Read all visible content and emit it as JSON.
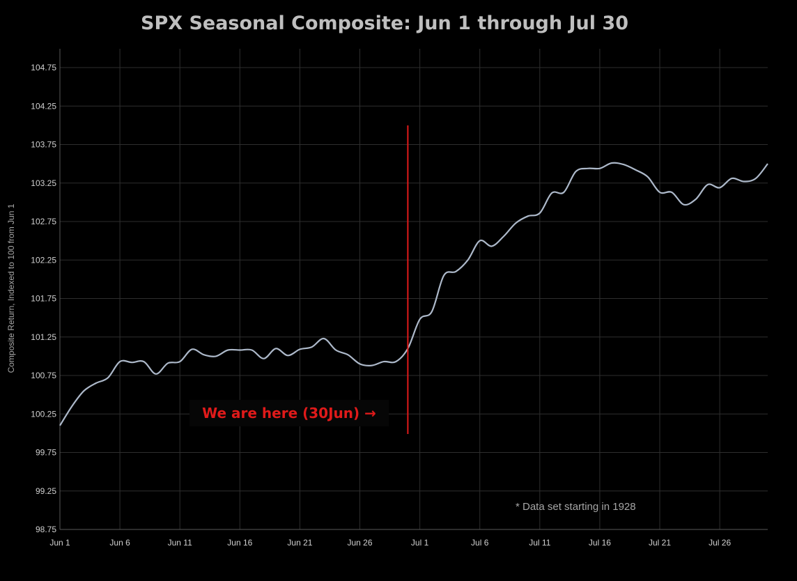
{
  "chart_data": {
    "type": "line",
    "title": "SPX Seasonal Composite: Jun 1 through Jul 30",
    "xlabel": "",
    "ylabel": "Composite Return, Indexed to 100 from Jun 1",
    "ylim": [
      98.75,
      104.75
    ],
    "yticks": [
      98.75,
      99.25,
      99.75,
      100.25,
      100.75,
      101.25,
      101.75,
      102.25,
      102.75,
      103.25,
      103.75,
      104.25,
      104.75
    ],
    "ytick_labels": [
      "98.75",
      "99.25",
      "99.75",
      "100.25",
      "100.75",
      "101.25",
      "101.75",
      "102.25",
      "102.75",
      "103.25",
      "103.75",
      "104.25",
      "104.75"
    ],
    "xtick_labels": [
      "Jun 1",
      "Jun 6",
      "Jun 11",
      "Jun 16",
      "Jun 21",
      "Jun 26",
      "Jul 1",
      "Jul 6",
      "Jul 11",
      "Jul 16",
      "Jul 21",
      "Jul 26"
    ],
    "grid": true,
    "colors": {
      "series": "#adb9ca",
      "marker": "#e01a1a",
      "background": "#000000"
    },
    "series": [
      {
        "x": [
          "Jun 1",
          "Jun 2",
          "Jun 3",
          "Jun 4",
          "Jun 5",
          "Jun 6",
          "Jun 7",
          "Jun 8",
          "Jun 9",
          "Jun 10",
          "Jun 11",
          "Jun 12",
          "Jun 13",
          "Jun 14",
          "Jun 15",
          "Jun 16",
          "Jun 17",
          "Jun 18",
          "Jun 19",
          "Jun 20",
          "Jun 21",
          "Jun 22",
          "Jun 23",
          "Jun 24",
          "Jun 25",
          "Jun 26",
          "Jun 27",
          "Jun 28",
          "Jun 29",
          "Jun 30",
          "Jul 1",
          "Jul 2",
          "Jul 3",
          "Jul 4",
          "Jul 5",
          "Jul 6",
          "Jul 7",
          "Jul 8",
          "Jul 9",
          "Jul 10",
          "Jul 11",
          "Jul 12",
          "Jul 13",
          "Jul 14",
          "Jul 15",
          "Jul 16",
          "Jul 17",
          "Jul 18",
          "Jul 19",
          "Jul 20",
          "Jul 21",
          "Jul 22",
          "Jul 23",
          "Jul 24",
          "Jul 25",
          "Jul 26",
          "Jul 27",
          "Jul 28",
          "Jul 29",
          "Jul 30"
        ],
        "values": [
          100.1,
          100.35,
          100.55,
          100.65,
          100.72,
          100.93,
          100.92,
          100.93,
          100.77,
          100.91,
          100.93,
          101.09,
          101.02,
          101.0,
          101.08,
          101.08,
          101.08,
          100.97,
          101.1,
          101.01,
          101.09,
          101.12,
          101.23,
          101.08,
          101.02,
          100.9,
          100.88,
          100.93,
          100.93,
          101.1,
          101.48,
          101.58,
          102.05,
          102.1,
          102.25,
          102.5,
          102.43,
          102.56,
          102.73,
          102.82,
          102.86,
          103.12,
          103.13,
          103.4,
          103.44,
          103.44,
          103.51,
          103.49,
          103.42,
          103.33,
          103.13,
          103.13,
          102.97,
          103.04,
          103.23,
          103.19,
          103.31,
          103.27,
          103.31,
          103.5
        ]
      }
    ],
    "marker_date": "Jun 30",
    "marker_label": "We are here (30Jun) →",
    "footnote": "* Data set starting in 1928"
  }
}
